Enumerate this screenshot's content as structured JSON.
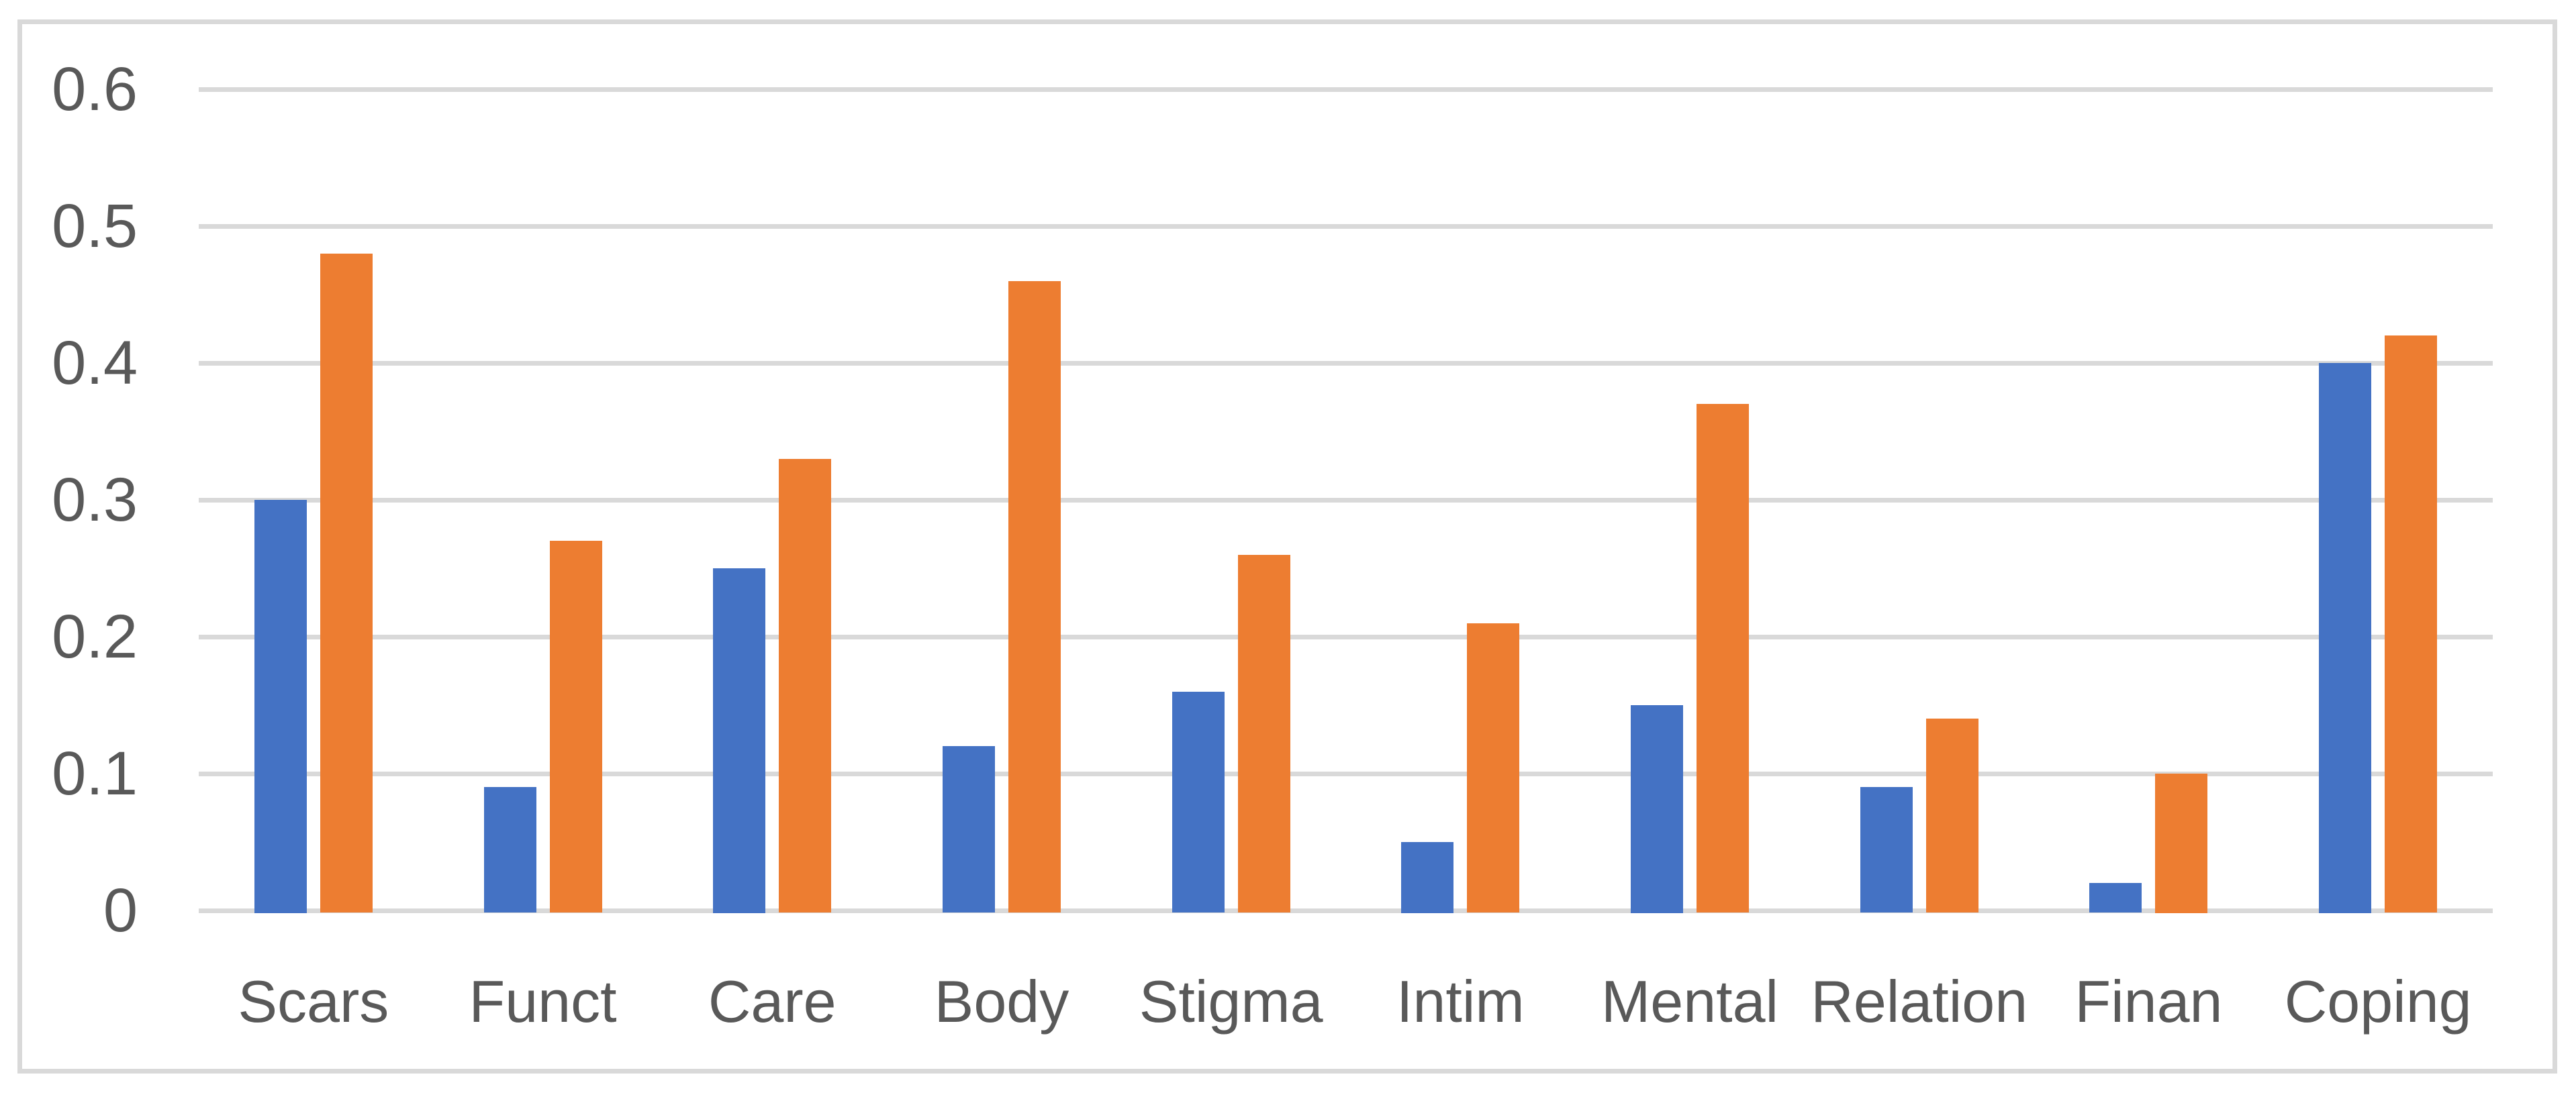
{
  "chart_data": {
    "type": "bar",
    "title": "",
    "xlabel": "",
    "ylabel": "",
    "categories": [
      "Scars",
      "Funct",
      "Care",
      "Body",
      "Stigma",
      "Intim",
      "Mental",
      "Relation",
      "Finan",
      "Coping"
    ],
    "series": [
      {
        "name": "series1-blue",
        "color": "#4472C4",
        "values": [
          0.3,
          0.09,
          0.25,
          0.12,
          0.16,
          0.05,
          0.15,
          0.09,
          0.02,
          0.4
        ]
      },
      {
        "name": "series2-orange",
        "color": "#ED7D31",
        "values": [
          0.48,
          0.27,
          0.33,
          0.46,
          0.26,
          0.21,
          0.37,
          0.14,
          0.1,
          0.42
        ]
      }
    ],
    "ylim": [
      0,
      0.6
    ],
    "yticks": [
      0,
      0.1,
      0.2,
      0.3,
      0.4,
      0.5,
      0.6
    ],
    "ytick_labels": [
      "0",
      "0.1",
      "0.2",
      "0.3",
      "0.4",
      "0.5",
      "0.6"
    ],
    "grid": true,
    "legend_position": "none"
  },
  "style": {
    "bar_blue": "#4472C4",
    "bar_orange": "#ED7D31",
    "gridline_color": "#D9D9D9",
    "frame_border_color": "#D9D9D9",
    "axis_text_color": "#595959",
    "background": "#FFFFFF"
  }
}
